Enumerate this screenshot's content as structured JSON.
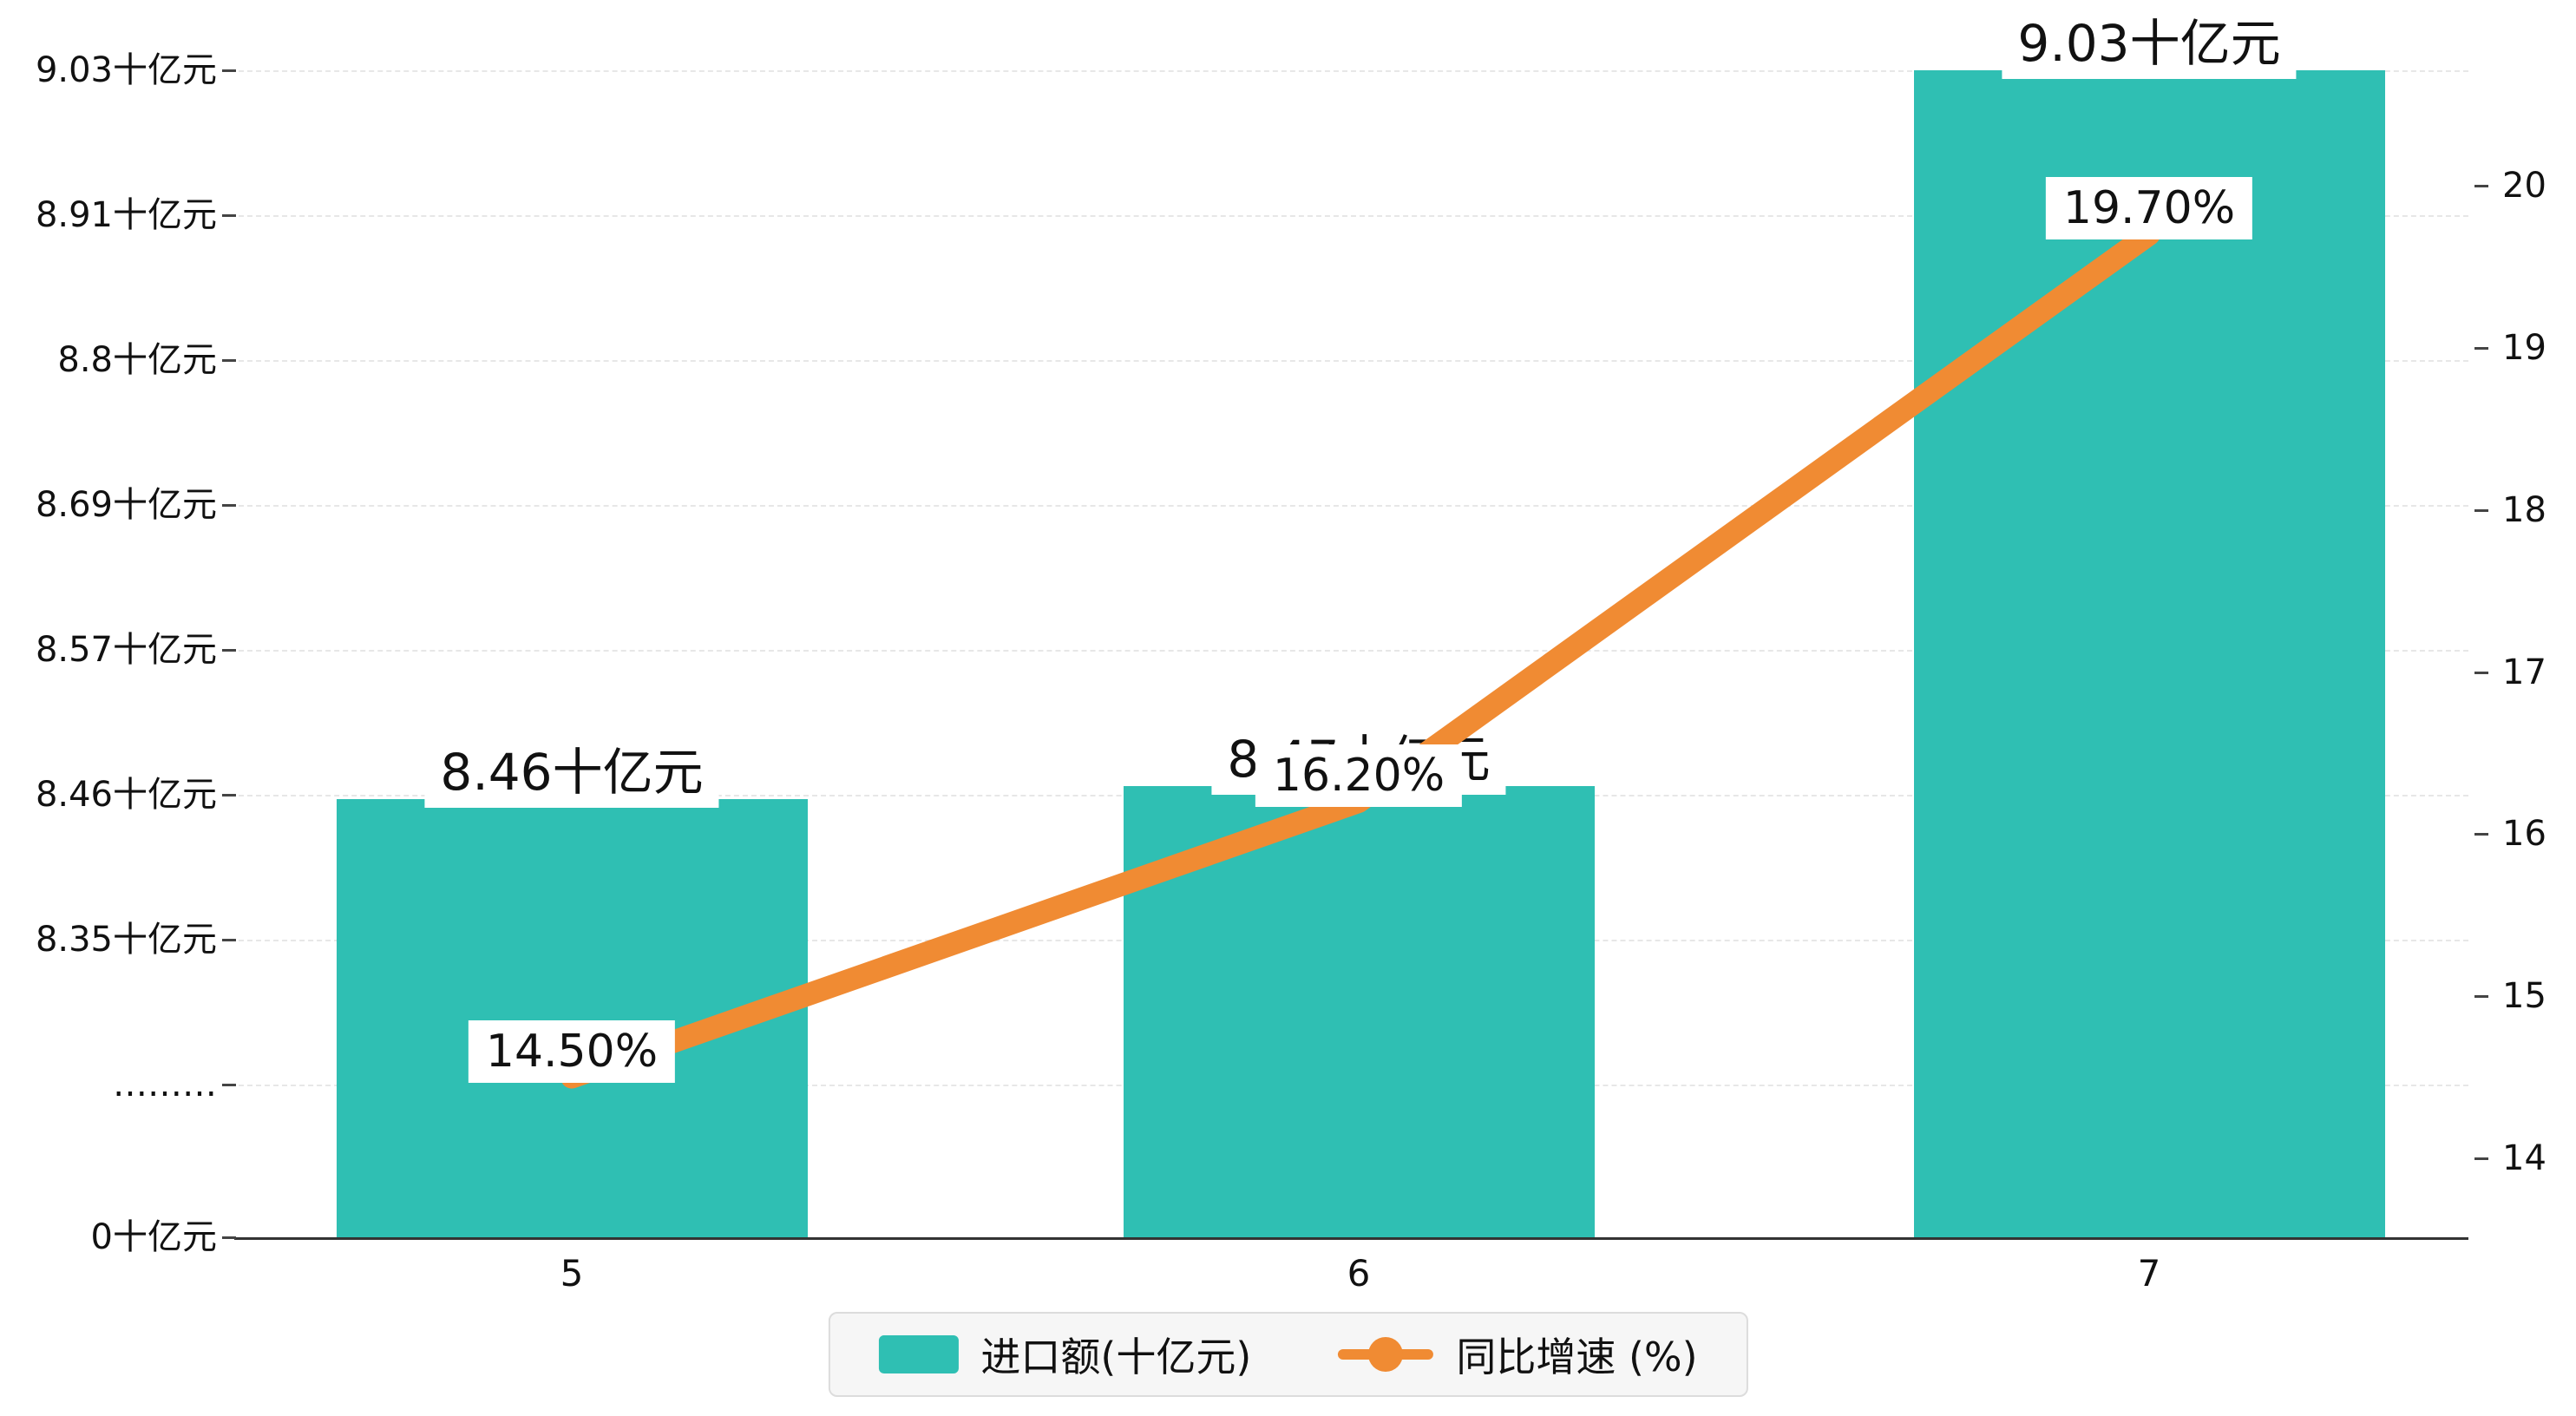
{
  "chart_data": {
    "type": "bar",
    "subtype": "combo-bar-line",
    "title": "",
    "categories": [
      "5",
      "6",
      "7"
    ],
    "series": [
      {
        "name": "进口额(十亿元)",
        "type": "bar",
        "values": [
          8.46,
          8.47,
          9.03
        ],
        "labels": [
          "8.46十亿元",
          "8.47十亿元",
          "9.03十亿元"
        ],
        "color": "#2fbfb3"
      },
      {
        "name": "同比增速 (%)",
        "type": "line",
        "values": [
          14.5,
          16.2,
          19.7
        ],
        "labels": [
          "14.50%",
          "16.20%",
          "19.70%"
        ],
        "color": "#f08b33"
      }
    ],
    "left_axis": {
      "labels_top_to_bottom": [
        "9.03十亿元",
        "8.91十亿元",
        "8.8十亿元",
        "8.69十亿元",
        "8.57十亿元",
        "8.46十亿元",
        "8.35十亿元",
        "………",
        "0十亿元"
      ],
      "break_min": 8.35,
      "max": 9.03
    },
    "right_axis": {
      "labels_bottom_to_top": [
        "14",
        "15",
        "16",
        "17",
        "18",
        "19",
        "20"
      ],
      "min": 14,
      "max": 20
    },
    "legend": [
      {
        "label": "进口额(十亿元)",
        "marker": "rect",
        "color": "#2fbfb3"
      },
      {
        "label": "同比增速 (%)",
        "marker": "line-dot",
        "color": "#f08b33"
      }
    ],
    "layout_hints": {
      "grid": "dashed-horizontal",
      "legend_position": "bottom-center"
    },
    "colors": {
      "bar": "#2fbfb3",
      "line": "#f08b33",
      "grid": "#e7e7e7",
      "axis": "#333333",
      "text": "#111111"
    }
  }
}
